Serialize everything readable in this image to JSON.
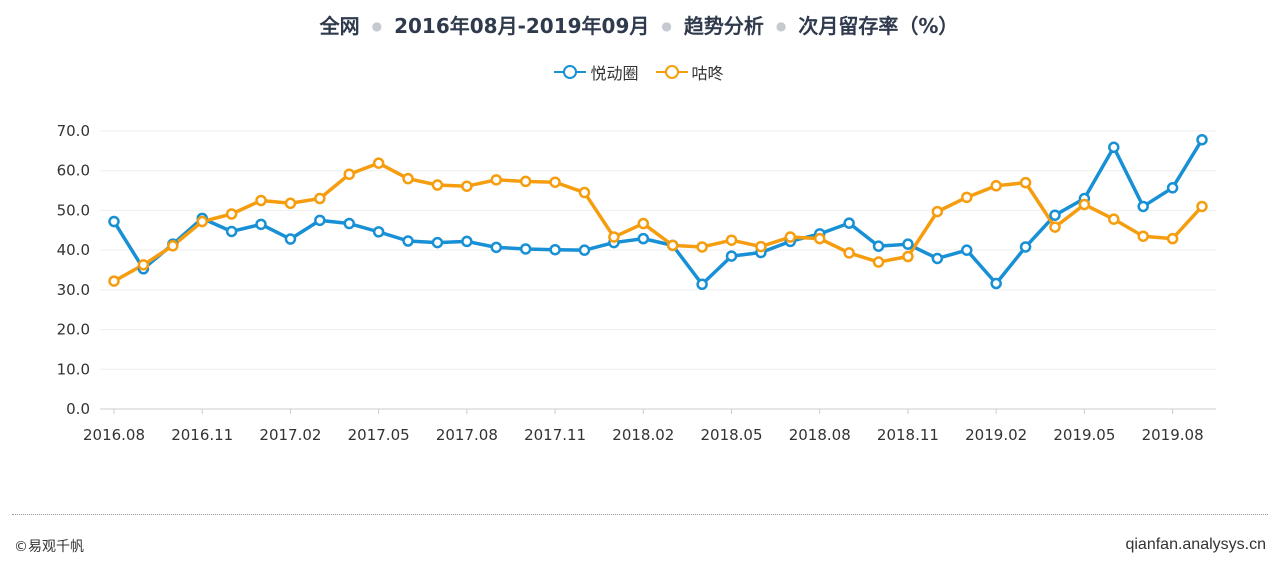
{
  "title": {
    "parts": [
      "全网",
      "2016年08月-2019年09月",
      "趋势分析",
      "次月留存率（%）"
    ]
  },
  "footer": {
    "left": "©易观千帆",
    "right": "qianfan.analysys.cn"
  },
  "colors": {
    "series1": "#1890d5",
    "series2": "#f59d0f",
    "grid": "#eeeeee",
    "axis": "#cccccc"
  },
  "chart_data": {
    "type": "line",
    "title": "全网 · 2016年08月-2019年09月 · 趋势分析 · 次月留存率（%）",
    "ylim": [
      0,
      70
    ],
    "yticks": [
      "0.0",
      "10.0",
      "20.0",
      "30.0",
      "40.0",
      "50.0",
      "60.0",
      "70.0"
    ],
    "x": [
      "2016.08",
      "2016.09",
      "2016.10",
      "2016.11",
      "2016.12",
      "2017.01",
      "2017.02",
      "2017.03",
      "2017.04",
      "2017.05",
      "2017.06",
      "2017.07",
      "2017.08",
      "2017.09",
      "2017.10",
      "2017.11",
      "2017.12",
      "2018.01",
      "2018.02",
      "2018.03",
      "2018.04",
      "2018.05",
      "2018.06",
      "2018.07",
      "2018.08",
      "2018.09",
      "2018.10",
      "2018.11",
      "2018.12",
      "2019.01",
      "2019.02",
      "2019.03",
      "2019.04",
      "2019.05",
      "2019.06",
      "2019.07",
      "2019.08",
      "2019.09"
    ],
    "xtick_labels": [
      "2016.08",
      "2016.11",
      "2017.02",
      "2017.05",
      "2017.08",
      "2017.11",
      "2018.02",
      "2018.05",
      "2018.08",
      "2018.11",
      "2019.02",
      "2019.05",
      "2019.08"
    ],
    "legend_position": "top-center",
    "grid": true,
    "series": [
      {
        "name": "悦动圈",
        "color": "#1890d5",
        "values": [
          47.2,
          35.3,
          41.5,
          48.0,
          44.7,
          46.5,
          42.8,
          47.5,
          46.7,
          44.6,
          42.3,
          41.9,
          42.2,
          40.7,
          40.3,
          40.1,
          40.0,
          41.9,
          42.9,
          41.2,
          31.4,
          38.5,
          39.4,
          42.2,
          44.1,
          46.8,
          41.0,
          41.5,
          37.9,
          40.0,
          31.6,
          40.8,
          48.8,
          53.0,
          65.9,
          51.0,
          55.7,
          67.8
        ]
      },
      {
        "name": "咕咚",
        "color": "#f59d0f",
        "values": [
          32.2,
          36.3,
          41.1,
          47.2,
          49.1,
          52.5,
          51.8,
          53.0,
          59.1,
          61.9,
          58.0,
          56.4,
          56.1,
          57.7,
          57.3,
          57.1,
          54.5,
          43.3,
          46.7,
          41.2,
          40.8,
          42.5,
          40.9,
          43.3,
          42.9,
          39.3,
          37.0,
          38.4,
          49.7,
          53.3,
          56.2,
          57.0,
          45.8,
          51.5,
          47.8,
          43.5,
          42.9,
          51.0
        ]
      }
    ]
  }
}
